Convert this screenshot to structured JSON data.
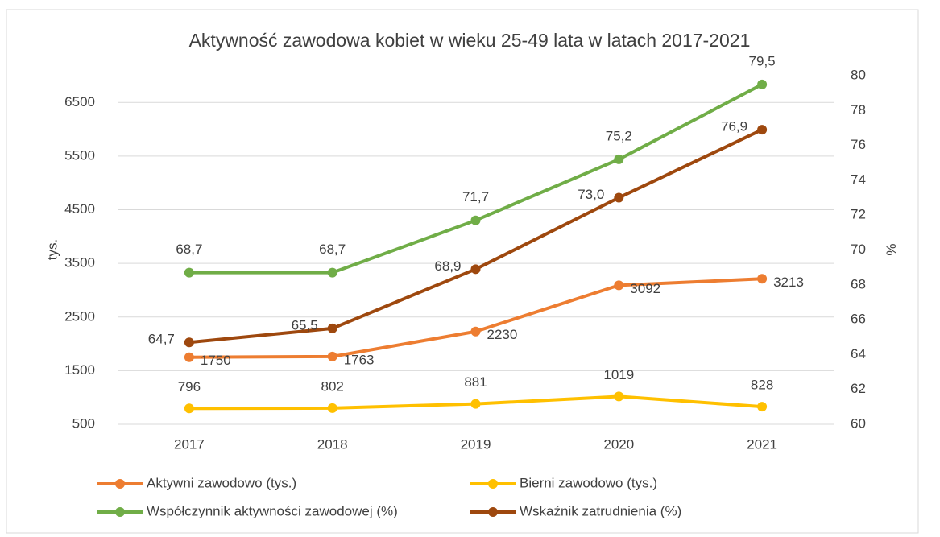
{
  "chart_data": {
    "type": "line",
    "title": "Aktywność zawodowa kobiet w wieku 25-49 lata w latach 2017-2021",
    "ylabel": "tys.",
    "y2label": "%",
    "categories": [
      "2017",
      "2018",
      "2019",
      "2020",
      "2021"
    ],
    "ylim": [
      500,
      7000
    ],
    "yticks": [
      500,
      1500,
      2500,
      3500,
      4500,
      5500,
      6500
    ],
    "y2lim": [
      60,
      80
    ],
    "y2ticks": [
      60,
      62,
      64,
      66,
      68,
      70,
      72,
      74,
      76,
      78,
      80
    ],
    "grid": true,
    "series": [
      {
        "name": "Aktywni zawodowo (tys.)",
        "color": "#ed7d31",
        "values": [
          1750,
          1763,
          2230,
          3092,
          3213
        ]
      },
      {
        "name": "Bierni zawodowo (tys.)",
        "color": "#ffc000",
        "values": [
          796,
          802,
          881,
          1019,
          828
        ]
      },
      {
        "name": "Współczynnik aktywności zawodowej (%)",
        "color": "#70ad47",
        "axis": "y2",
        "values": [
          68.7,
          68.7,
          71.7,
          75.2,
          79.5
        ],
        "value_labels": [
          "68,7",
          "68,7",
          "71,7",
          "75,2",
          "79,5"
        ]
      },
      {
        "name": "Wskaźnik zatrudnienia (%)",
        "color": "#9e480e",
        "axis": "y2",
        "values": [
          64.7,
          65.5,
          68.9,
          73.0,
          76.9
        ],
        "value_labels": [
          "64,7",
          "65,5",
          "68,9",
          "73,0",
          "76,9"
        ]
      }
    ]
  }
}
